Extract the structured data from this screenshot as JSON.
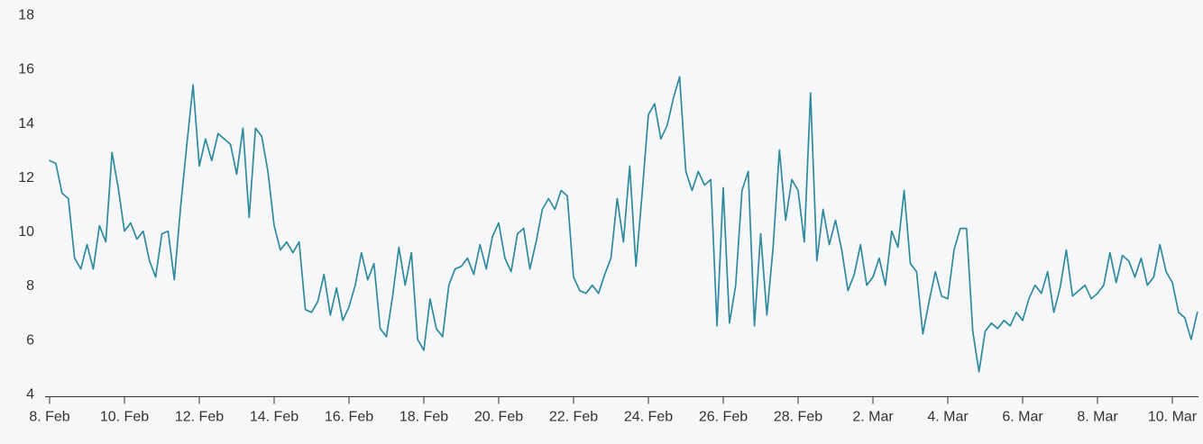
{
  "chart": {
    "background": "#f6f7f8",
    "line_color": "#2e8a9e",
    "axis_color": "#333333",
    "label_color": "#333333"
  },
  "chart_data": {
    "type": "line",
    "title": "",
    "xlabel": "",
    "ylabel": "",
    "legend": false,
    "grid": false,
    "ylim": [
      4,
      18
    ],
    "y_ticks": [
      4,
      6,
      8,
      10,
      12,
      14,
      16,
      18
    ],
    "x_unit": "days since 8. Feb",
    "x_step_days": 0.1666667,
    "xlim_days": [
      0,
      30.67
    ],
    "x_tick_days": [
      0,
      2,
      4,
      6,
      8,
      10,
      12,
      14,
      16,
      18,
      20,
      22,
      24,
      26,
      28,
      30
    ],
    "x_tick_labels": [
      "8. Feb",
      "10. Feb",
      "12. Feb",
      "14. Feb",
      "16. Feb",
      "18. Feb",
      "20. Feb",
      "22. Feb",
      "24. Feb",
      "26. Feb",
      "28. Feb",
      "2. Mar",
      "4. Mar",
      "6. Mar",
      "8. Mar",
      "10. Mar"
    ],
    "series": [
      {
        "name": "value",
        "values": [
          12.6,
          12.5,
          11.4,
          11.2,
          9.0,
          8.6,
          9.5,
          8.6,
          10.2,
          9.6,
          12.9,
          11.6,
          10.0,
          10.3,
          9.7,
          10.0,
          8.9,
          8.3,
          9.9,
          10.0,
          8.2,
          10.9,
          13.2,
          15.4,
          12.4,
          13.4,
          12.6,
          13.6,
          13.4,
          13.2,
          12.1,
          13.8,
          10.5,
          13.8,
          13.5,
          12.2,
          10.2,
          9.3,
          9.6,
          9.2,
          9.6,
          7.1,
          7.0,
          7.4,
          8.4,
          6.9,
          7.9,
          6.7,
          7.2,
          8.0,
          9.2,
          8.2,
          8.8,
          6.4,
          6.1,
          7.6,
          9.4,
          8.0,
          9.2,
          6.0,
          5.6,
          7.5,
          6.4,
          6.1,
          8.0,
          8.6,
          8.7,
          9.0,
          8.4,
          9.5,
          8.6,
          9.8,
          10.3,
          9.0,
          8.5,
          9.9,
          10.1,
          8.6,
          9.6,
          10.8,
          11.2,
          10.8,
          11.5,
          11.3,
          8.3,
          7.8,
          7.7,
          8.0,
          7.7,
          8.4,
          9.0,
          11.2,
          9.6,
          12.4,
          8.7,
          11.4,
          14.3,
          14.7,
          13.4,
          13.9,
          14.9,
          15.7,
          12.2,
          11.5,
          12.2,
          11.7,
          11.9,
          6.5,
          11.6,
          6.6,
          8.0,
          11.5,
          12.2,
          6.5,
          9.9,
          6.9,
          9.4,
          13.0,
          10.4,
          11.9,
          11.5,
          9.6,
          15.1,
          8.9,
          10.8,
          9.5,
          10.4,
          9.3,
          7.8,
          8.4,
          9.5,
          8.0,
          8.3,
          9.0,
          8.0,
          10.0,
          9.4,
          11.5,
          8.8,
          8.5,
          6.2,
          7.4,
          8.5,
          7.6,
          7.5,
          9.3,
          10.1,
          10.1,
          6.3,
          4.8,
          6.3,
          6.6,
          6.4,
          6.7,
          6.5,
          7.0,
          6.7,
          7.5,
          8.0,
          7.7,
          8.5,
          7.0,
          7.9,
          9.3,
          7.6,
          7.8,
          8.0,
          7.5,
          7.7,
          8.0,
          9.2,
          8.1,
          9.1,
          8.9,
          8.3,
          9.0,
          8.0,
          8.3,
          9.5,
          8.5,
          8.1,
          7.0,
          6.8,
          6.0,
          7.0
        ]
      }
    ]
  }
}
